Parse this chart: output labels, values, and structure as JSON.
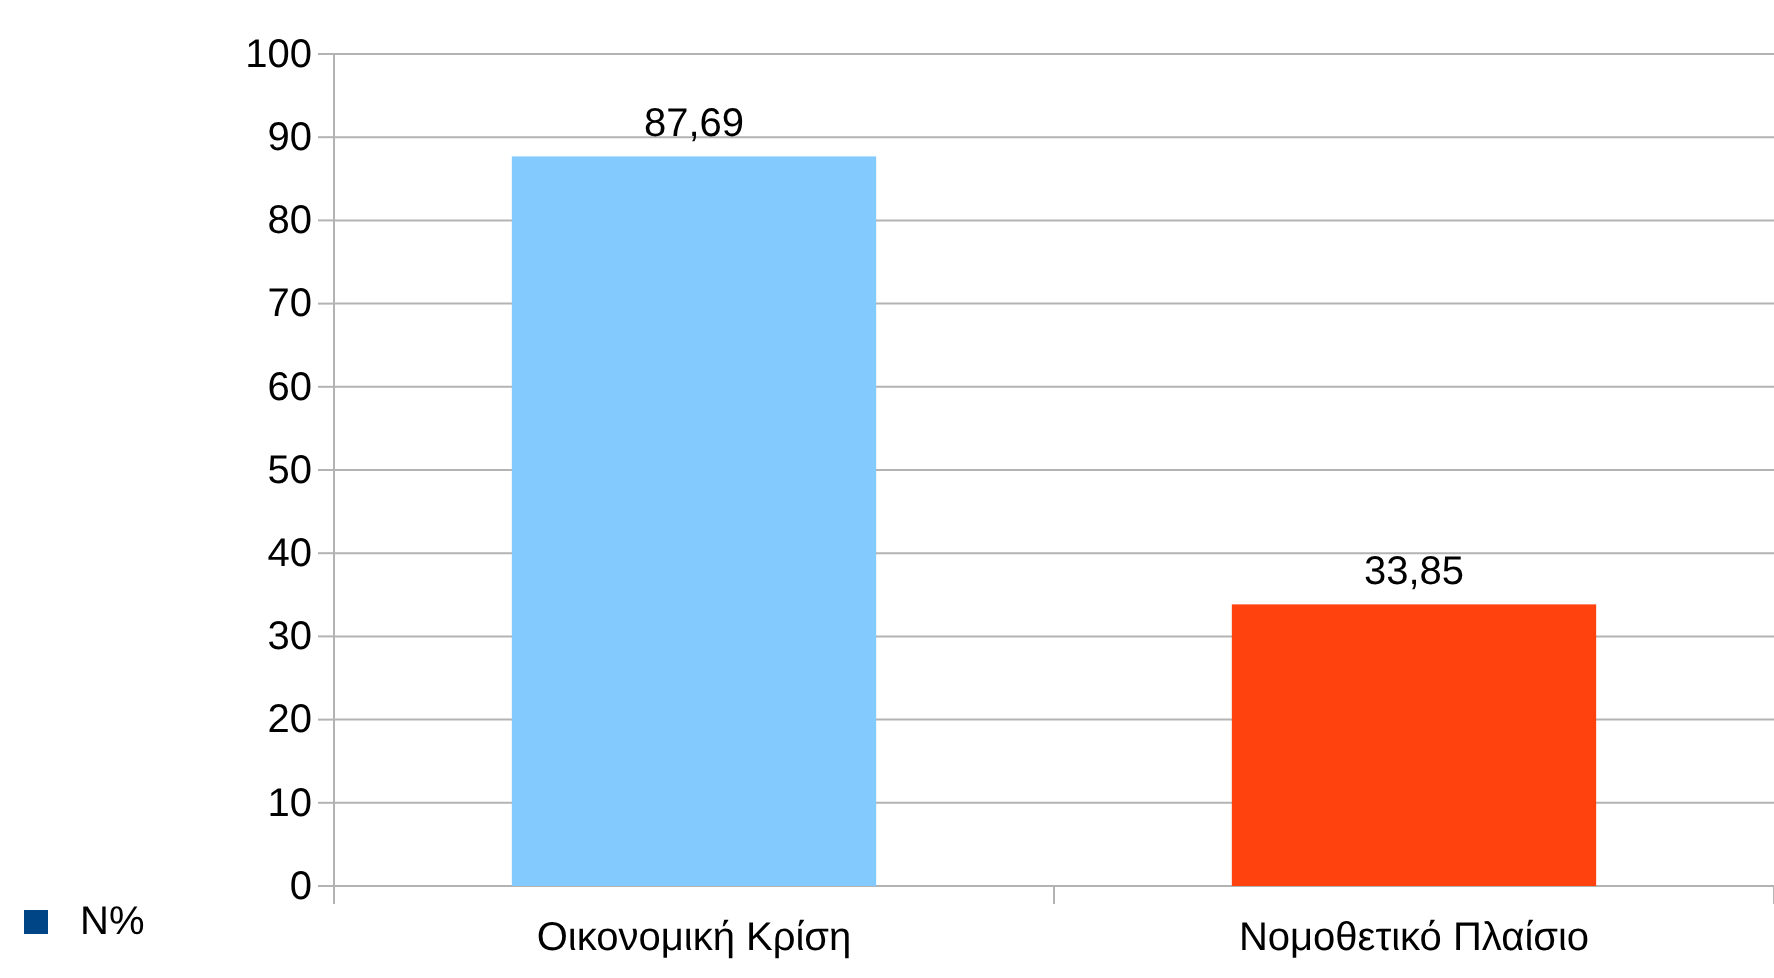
{
  "chart_data": {
    "type": "bar",
    "categories": [
      "Οικονομική Κρίση",
      "Νομοθετικό Πλαίσιο"
    ],
    "series": [
      {
        "name": "N%",
        "color": "#004586",
        "colors": [
          "#83caff",
          "#ff420e"
        ],
        "values": [
          87.69,
          33.85
        ],
        "value_labels": [
          "87,69",
          "33,85"
        ]
      }
    ],
    "ylim": [
      0,
      100
    ],
    "yticks": [
      0,
      10,
      20,
      30,
      40,
      50,
      60,
      70,
      80,
      90,
      100
    ],
    "grid": "y",
    "legend": "bottom left"
  }
}
